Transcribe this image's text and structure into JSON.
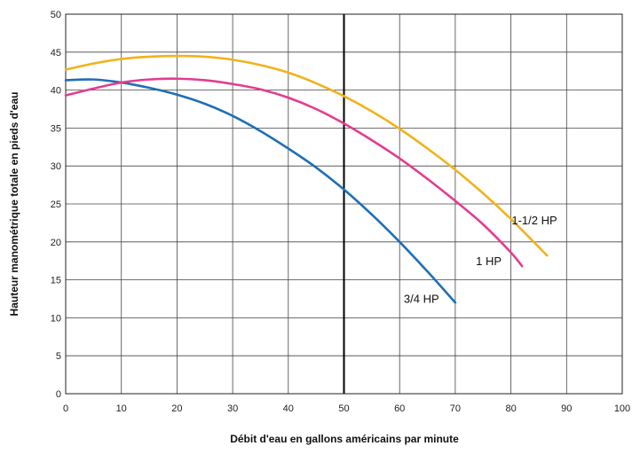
{
  "chart_data": {
    "type": "line",
    "title": "",
    "xlabel": "Débit d'eau en gallons américains par minute",
    "ylabel": "Hauteur manométrique totale en pieds d'eau",
    "xlim": [
      0,
      100
    ],
    "ylim": [
      0,
      50
    ],
    "x_ticks": [
      0,
      10,
      20,
      30,
      40,
      50,
      60,
      70,
      80,
      90,
      100
    ],
    "y_ticks": [
      0,
      5,
      10,
      15,
      20,
      25,
      30,
      35,
      40,
      45,
      50
    ],
    "grid": true,
    "highlight_x": 50,
    "legend": "inline labels near curve ends",
    "series": [
      {
        "name": "3/4 HP",
        "color": "#1f6fb4",
        "x": [
          0,
          5,
          10,
          15,
          20,
          25,
          30,
          35,
          40,
          45,
          50,
          55,
          60,
          65,
          70
        ],
        "y": [
          41.3,
          41.4,
          41.0,
          40.3,
          39.4,
          38.2,
          36.6,
          34.6,
          32.3,
          29.8,
          26.9,
          23.6,
          20.0,
          16.1,
          12.0
        ]
      },
      {
        "name": "1 HP",
        "color": "#e23d8f",
        "x": [
          0,
          5,
          10,
          15,
          20,
          25,
          30,
          35,
          40,
          45,
          50,
          55,
          60,
          65,
          70,
          75,
          80,
          82
        ],
        "y": [
          39.3,
          40.2,
          41.0,
          41.4,
          41.5,
          41.3,
          40.8,
          40.1,
          39.0,
          37.5,
          35.6,
          33.4,
          31.0,
          28.3,
          25.4,
          22.3,
          18.6,
          16.8
        ]
      },
      {
        "name": "1-1/2 HP",
        "color": "#f2b21c",
        "x": [
          0,
          5,
          10,
          15,
          20,
          25,
          30,
          35,
          40,
          45,
          50,
          55,
          60,
          65,
          70,
          75,
          80,
          86.5
        ],
        "y": [
          42.7,
          43.5,
          44.1,
          44.4,
          44.5,
          44.4,
          44.0,
          43.3,
          42.3,
          40.9,
          39.2,
          37.2,
          34.9,
          32.3,
          29.5,
          26.4,
          23.0,
          18.2
        ]
      }
    ]
  }
}
